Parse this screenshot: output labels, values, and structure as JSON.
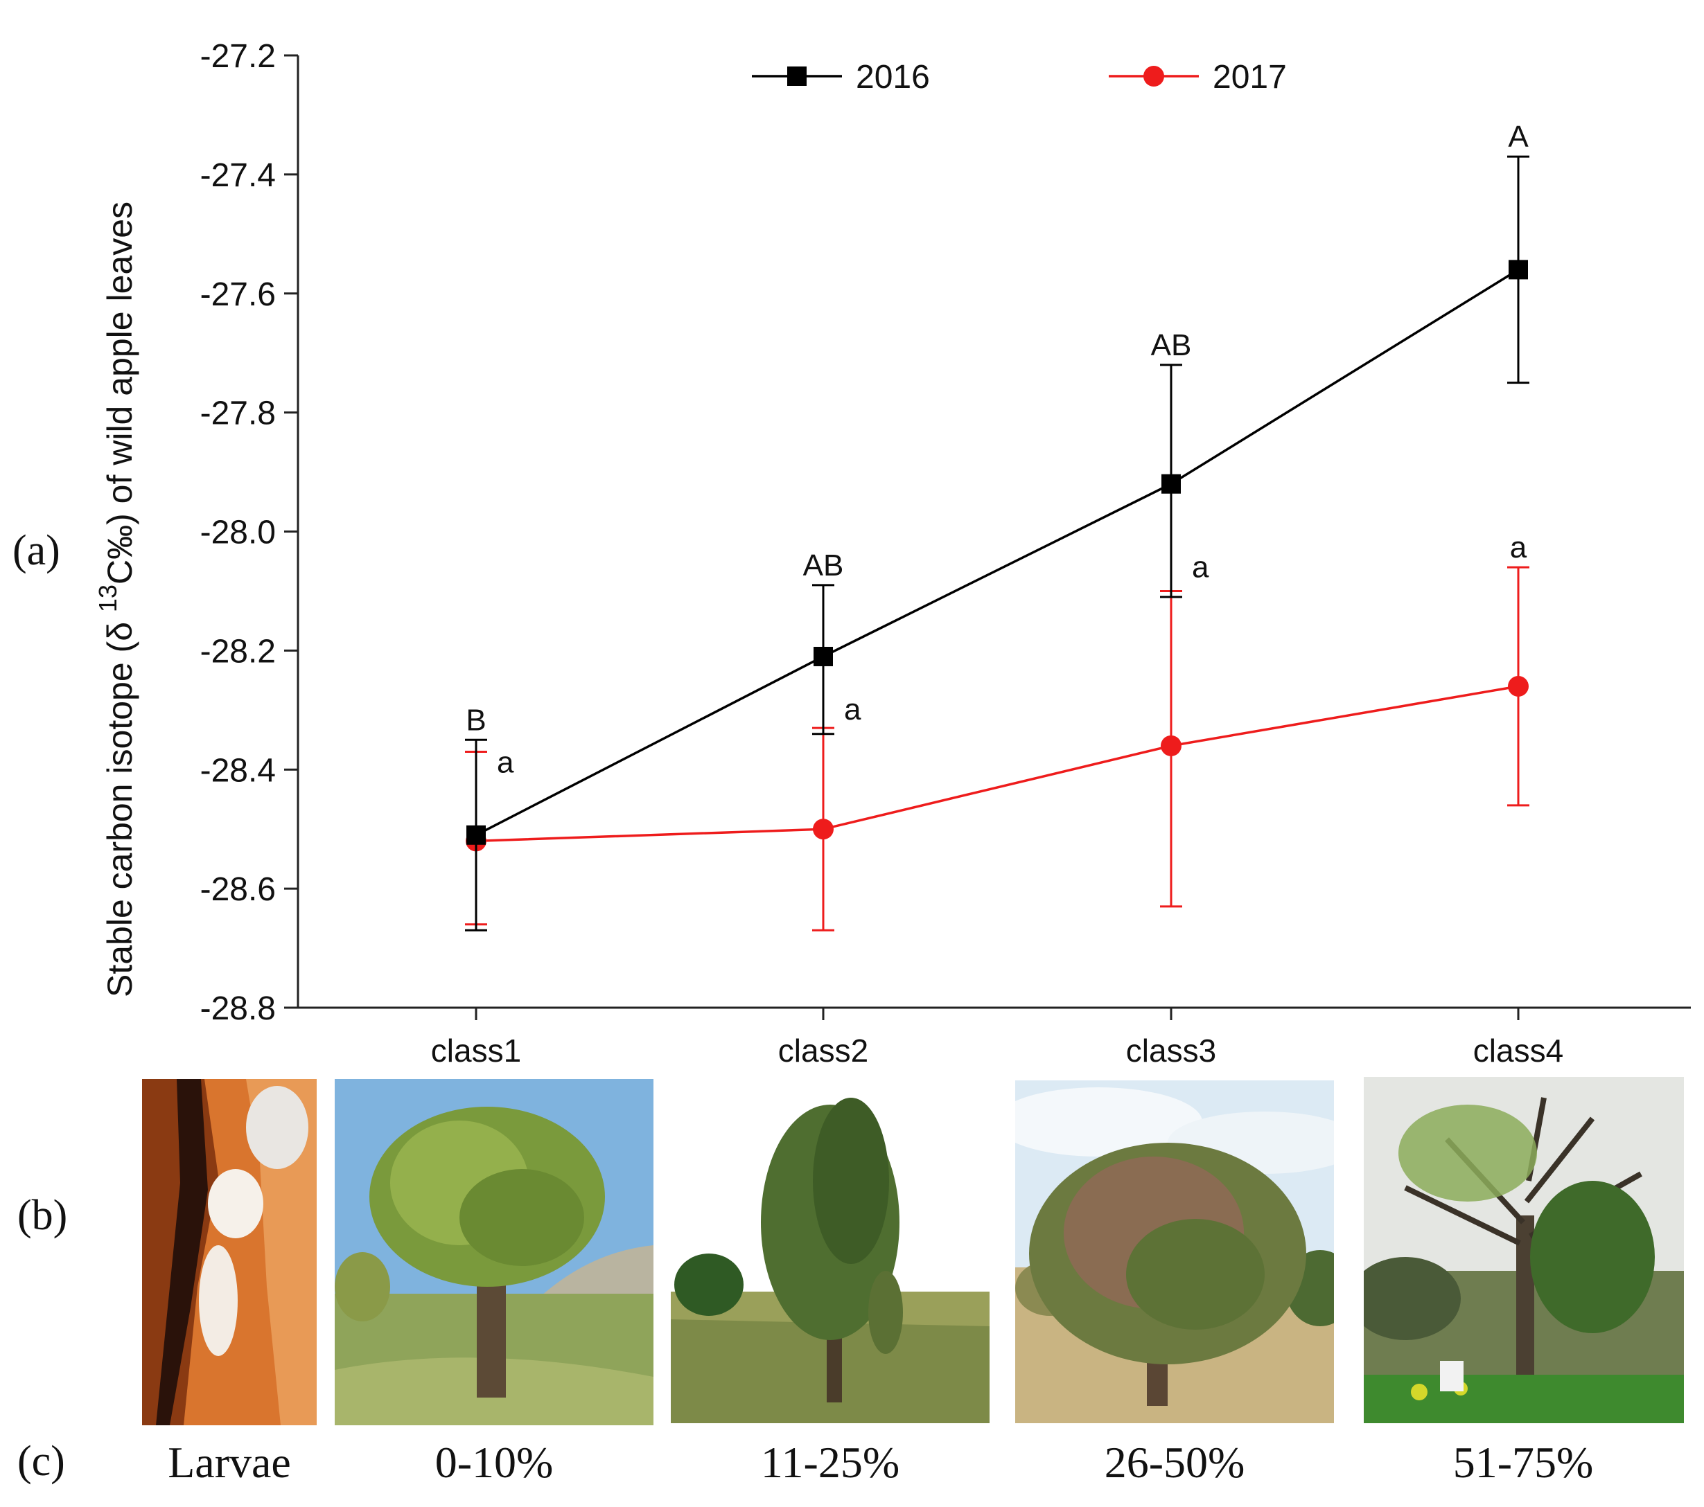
{
  "panel_labels": {
    "a": "(a)",
    "b": "(b)",
    "c": "(c)"
  },
  "chart_data": {
    "type": "line",
    "title": "",
    "xlabel": "",
    "ylabel_prefix": "Stable carbon isotope (δ ",
    "ylabel_sup": "13",
    "ylabel_suffix": "C‰) of wild apple leaves",
    "categories": [
      "class1",
      "class2",
      "class3",
      "class4"
    ],
    "ylim": [
      -28.8,
      -27.2
    ],
    "yticks": [
      -28.8,
      -28.6,
      -28.4,
      -28.2,
      -28.0,
      -27.8,
      -27.6,
      -27.4,
      -27.2
    ],
    "ytick_labels": [
      "-28.8",
      "-28.6",
      "-28.4",
      "-28.2",
      "-28.0",
      "-27.8",
      "-27.6",
      "-27.4",
      "-27.2"
    ],
    "legend_position": "top-center",
    "series": [
      {
        "name": "2016",
        "color": "#000000",
        "marker": "square",
        "values": [
          -28.51,
          -28.21,
          -27.92,
          -27.56
        ],
        "err_upper": [
          -28.35,
          -28.09,
          -27.72,
          -27.37
        ],
        "err_lower": [
          -28.67,
          -28.34,
          -28.11,
          -27.75
        ],
        "letters": [
          "B",
          "AB",
          "AB",
          "A"
        ]
      },
      {
        "name": "2017",
        "color": "#ee1c1c",
        "marker": "circle",
        "values": [
          -28.52,
          -28.5,
          -28.36,
          -28.26
        ],
        "err_upper": [
          -28.37,
          -28.33,
          -28.1,
          -28.06
        ],
        "err_lower": [
          -28.66,
          -28.67,
          -28.63,
          -28.46
        ],
        "letters": [
          "a",
          "a",
          "a",
          "a"
        ]
      }
    ]
  },
  "photos": [
    {
      "caption": "Larvae",
      "subject": "larvae-photo"
    },
    {
      "caption": "0-10%",
      "subject": "tree-class1-photo"
    },
    {
      "caption": "11-25%",
      "subject": "tree-class2-photo"
    },
    {
      "caption": "26-50%",
      "subject": "tree-class3-photo"
    },
    {
      "caption": "51-75%",
      "subject": "tree-class4-photo"
    }
  ]
}
